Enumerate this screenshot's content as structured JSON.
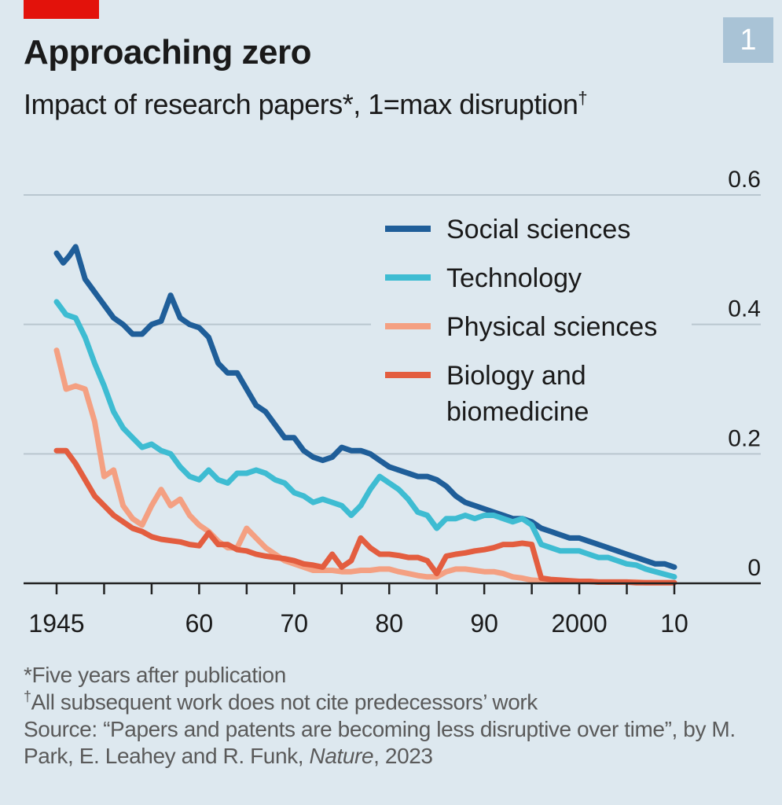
{
  "header": {
    "chart_number": "1",
    "title": "Approaching zero",
    "subtitle": "Impact of research papers*, 1=max disruption",
    "subtitle_mark": "†",
    "accent_color": "#e3120b"
  },
  "footnotes": {
    "note1": "*Five years after publication",
    "note2_mark": "†",
    "note2": "All subsequent work does not cite predecessors’ work",
    "source_prefix": "Source: “Papers and patents are becoming less disruptive over time”, by M. Park, E. Leahey and R. Funk, ",
    "source_journal": "Nature",
    "source_suffix": ", 2023"
  },
  "chart_data": {
    "type": "line",
    "title": "Approaching zero",
    "subtitle": "Impact of research papers*, 1=max disruption†",
    "xlim": [
      1945,
      2010
    ],
    "ylim": [
      0,
      0.6
    ],
    "x_ticks": [
      1945,
      1950,
      1955,
      1960,
      1965,
      1970,
      1975,
      1980,
      1985,
      1990,
      1995,
      2000,
      2005,
      2010
    ],
    "x_tick_labels": [
      {
        "x": 1945,
        "label": "1945"
      },
      {
        "x": 1960,
        "label": "60"
      },
      {
        "x": 1970,
        "label": "70"
      },
      {
        "x": 1980,
        "label": "80"
      },
      {
        "x": 1990,
        "label": "90"
      },
      {
        "x": 2000,
        "label": "2000"
      },
      {
        "x": 2010,
        "label": "10"
      }
    ],
    "y_ticks": [
      {
        "y": 0,
        "label": "0"
      },
      {
        "y": 0.2,
        "label": "0.2"
      },
      {
        "y": 0.4,
        "label": "0.4"
      },
      {
        "y": 0.6,
        "label": "0.6"
      }
    ],
    "grid": true,
    "legend_position": "top-right",
    "series": [
      {
        "name": "Social sciences",
        "color": "#1f5e99",
        "points": [
          [
            1945,
            0.51
          ],
          [
            1945.7,
            0.495
          ],
          [
            1946.3,
            0.505
          ],
          [
            1947,
            0.52
          ],
          [
            1948,
            0.47
          ],
          [
            1949,
            0.45
          ],
          [
            1950,
            0.43
          ],
          [
            1951,
            0.41
          ],
          [
            1952,
            0.4
          ],
          [
            1953,
            0.385
          ],
          [
            1954,
            0.385
          ],
          [
            1955,
            0.4
          ],
          [
            1956,
            0.405
          ],
          [
            1957,
            0.445
          ],
          [
            1958,
            0.41
          ],
          [
            1959,
            0.4
          ],
          [
            1960,
            0.395
          ],
          [
            1961,
            0.38
          ],
          [
            1962,
            0.34
          ],
          [
            1963,
            0.325
          ],
          [
            1964,
            0.325
          ],
          [
            1965,
            0.3
          ],
          [
            1966,
            0.275
          ],
          [
            1967,
            0.265
          ],
          [
            1968,
            0.245
          ],
          [
            1969,
            0.225
          ],
          [
            1970,
            0.225
          ],
          [
            1971,
            0.205
          ],
          [
            1972,
            0.195
          ],
          [
            1973,
            0.19
          ],
          [
            1974,
            0.195
          ],
          [
            1975,
            0.21
          ],
          [
            1976,
            0.205
          ],
          [
            1977,
            0.205
          ],
          [
            1978,
            0.2
          ],
          [
            1979,
            0.19
          ],
          [
            1980,
            0.18
          ],
          [
            1981,
            0.175
          ],
          [
            1982,
            0.17
          ],
          [
            1983,
            0.165
          ],
          [
            1984,
            0.165
          ],
          [
            1985,
            0.16
          ],
          [
            1986,
            0.15
          ],
          [
            1987,
            0.135
          ],
          [
            1988,
            0.125
          ],
          [
            1989,
            0.12
          ],
          [
            1990,
            0.115
          ],
          [
            1991,
            0.11
          ],
          [
            1992,
            0.105
          ],
          [
            1993,
            0.1
          ],
          [
            1994,
            0.1
          ],
          [
            1995,
            0.095
          ],
          [
            1996,
            0.085
          ],
          [
            1997,
            0.08
          ],
          [
            1998,
            0.075
          ],
          [
            1999,
            0.07
          ],
          [
            2000,
            0.07
          ],
          [
            2001,
            0.065
          ],
          [
            2002,
            0.06
          ],
          [
            2003,
            0.055
          ],
          [
            2004,
            0.05
          ],
          [
            2005,
            0.045
          ],
          [
            2006,
            0.04
          ],
          [
            2007,
            0.035
          ],
          [
            2008,
            0.03
          ],
          [
            2009,
            0.03
          ],
          [
            2010,
            0.025
          ]
        ]
      },
      {
        "name": "Technology",
        "color": "#3ebcd2",
        "points": [
          [
            1945,
            0.435
          ],
          [
            1946,
            0.415
          ],
          [
            1947,
            0.41
          ],
          [
            1948,
            0.38
          ],
          [
            1949,
            0.34
          ],
          [
            1950,
            0.305
          ],
          [
            1951,
            0.265
          ],
          [
            1952,
            0.24
          ],
          [
            1953,
            0.225
          ],
          [
            1954,
            0.21
          ],
          [
            1955,
            0.215
          ],
          [
            1956,
            0.205
          ],
          [
            1957,
            0.2
          ],
          [
            1958,
            0.18
          ],
          [
            1959,
            0.165
          ],
          [
            1960,
            0.16
          ],
          [
            1961,
            0.175
          ],
          [
            1962,
            0.16
          ],
          [
            1963,
            0.155
          ],
          [
            1964,
            0.17
          ],
          [
            1965,
            0.17
          ],
          [
            1966,
            0.175
          ],
          [
            1967,
            0.17
          ],
          [
            1968,
            0.16
          ],
          [
            1969,
            0.155
          ],
          [
            1970,
            0.14
          ],
          [
            1971,
            0.135
          ],
          [
            1972,
            0.125
          ],
          [
            1973,
            0.13
          ],
          [
            1974,
            0.125
          ],
          [
            1975,
            0.12
          ],
          [
            1976,
            0.105
          ],
          [
            1977,
            0.12
          ],
          [
            1978,
            0.145
          ],
          [
            1979,
            0.165
          ],
          [
            1980,
            0.155
          ],
          [
            1981,
            0.145
          ],
          [
            1982,
            0.13
          ],
          [
            1983,
            0.11
          ],
          [
            1984,
            0.105
          ],
          [
            1985,
            0.085
          ],
          [
            1986,
            0.1
          ],
          [
            1987,
            0.1
          ],
          [
            1988,
            0.105
          ],
          [
            1989,
            0.1
          ],
          [
            1990,
            0.105
          ],
          [
            1991,
            0.105
          ],
          [
            1992,
            0.1
          ],
          [
            1993,
            0.095
          ],
          [
            1994,
            0.1
          ],
          [
            1995,
            0.09
          ],
          [
            1996,
            0.06
          ],
          [
            1997,
            0.055
          ],
          [
            1998,
            0.05
          ],
          [
            1999,
            0.05
          ],
          [
            2000,
            0.05
          ],
          [
            2001,
            0.045
          ],
          [
            2002,
            0.04
          ],
          [
            2003,
            0.04
          ],
          [
            2004,
            0.035
          ],
          [
            2005,
            0.03
          ],
          [
            2006,
            0.028
          ],
          [
            2007,
            0.022
          ],
          [
            2008,
            0.018
          ],
          [
            2009,
            0.014
          ],
          [
            2010,
            0.01
          ]
        ]
      },
      {
        "name": "Physical sciences",
        "color": "#f4a082",
        "points": [
          [
            1945,
            0.36
          ],
          [
            1946,
            0.3
          ],
          [
            1947,
            0.305
          ],
          [
            1948,
            0.3
          ],
          [
            1949,
            0.25
          ],
          [
            1950,
            0.165
          ],
          [
            1951,
            0.175
          ],
          [
            1952,
            0.12
          ],
          [
            1953,
            0.1
          ],
          [
            1954,
            0.09
          ],
          [
            1955,
            0.12
          ],
          [
            1956,
            0.145
          ],
          [
            1957,
            0.12
          ],
          [
            1958,
            0.13
          ],
          [
            1959,
            0.105
          ],
          [
            1960,
            0.09
          ],
          [
            1961,
            0.08
          ],
          [
            1962,
            0.065
          ],
          [
            1963,
            0.055
          ],
          [
            1964,
            0.055
          ],
          [
            1965,
            0.085
          ],
          [
            1966,
            0.07
          ],
          [
            1967,
            0.055
          ],
          [
            1968,
            0.045
          ],
          [
            1969,
            0.035
          ],
          [
            1970,
            0.03
          ],
          [
            1971,
            0.025
          ],
          [
            1972,
            0.02
          ],
          [
            1973,
            0.02
          ],
          [
            1974,
            0.02
          ],
          [
            1975,
            0.018
          ],
          [
            1976,
            0.018
          ],
          [
            1977,
            0.02
          ],
          [
            1978,
            0.02
          ],
          [
            1979,
            0.022
          ],
          [
            1980,
            0.022
          ],
          [
            1981,
            0.018
          ],
          [
            1982,
            0.015
          ],
          [
            1983,
            0.012
          ],
          [
            1984,
            0.01
          ],
          [
            1985,
            0.01
          ],
          [
            1986,
            0.018
          ],
          [
            1987,
            0.022
          ],
          [
            1988,
            0.022
          ],
          [
            1989,
            0.02
          ],
          [
            1990,
            0.018
          ],
          [
            1991,
            0.018
          ],
          [
            1992,
            0.015
          ],
          [
            1993,
            0.01
          ],
          [
            1994,
            0.008
          ],
          [
            1995,
            0.005
          ],
          [
            1996,
            0.004
          ],
          [
            1997,
            0.004
          ],
          [
            1998,
            0.004
          ],
          [
            1999,
            0.003
          ],
          [
            2000,
            0.003
          ],
          [
            2001,
            0.003
          ],
          [
            2002,
            0.002
          ],
          [
            2003,
            0.002
          ],
          [
            2004,
            0.002
          ],
          [
            2005,
            0.002
          ],
          [
            2006,
            0.002
          ],
          [
            2007,
            0.001
          ],
          [
            2008,
            0.001
          ],
          [
            2009,
            0.001
          ],
          [
            2010,
            0.001
          ]
        ]
      },
      {
        "name": "Biology and biomedicine",
        "color": "#e35d3f",
        "points": [
          [
            1945,
            0.205
          ],
          [
            1946,
            0.205
          ],
          [
            1947,
            0.185
          ],
          [
            1948,
            0.16
          ],
          [
            1949,
            0.135
          ],
          [
            1950,
            0.12
          ],
          [
            1951,
            0.105
          ],
          [
            1952,
            0.095
          ],
          [
            1953,
            0.085
          ],
          [
            1954,
            0.08
          ],
          [
            1955,
            0.072
          ],
          [
            1956,
            0.068
          ],
          [
            1957,
            0.066
          ],
          [
            1958,
            0.064
          ],
          [
            1959,
            0.06
          ],
          [
            1960,
            0.058
          ],
          [
            1961,
            0.078
          ],
          [
            1962,
            0.06
          ],
          [
            1963,
            0.06
          ],
          [
            1964,
            0.052
          ],
          [
            1965,
            0.05
          ],
          [
            1966,
            0.045
          ],
          [
            1967,
            0.042
          ],
          [
            1968,
            0.04
          ],
          [
            1969,
            0.038
          ],
          [
            1970,
            0.035
          ],
          [
            1971,
            0.03
          ],
          [
            1972,
            0.028
          ],
          [
            1973,
            0.025
          ],
          [
            1974,
            0.045
          ],
          [
            1975,
            0.025
          ],
          [
            1976,
            0.035
          ],
          [
            1977,
            0.07
          ],
          [
            1978,
            0.055
          ],
          [
            1979,
            0.045
          ],
          [
            1980,
            0.045
          ],
          [
            1981,
            0.043
          ],
          [
            1982,
            0.04
          ],
          [
            1983,
            0.04
          ],
          [
            1984,
            0.035
          ],
          [
            1985,
            0.015
          ],
          [
            1986,
            0.042
          ],
          [
            1987,
            0.045
          ],
          [
            1988,
            0.047
          ],
          [
            1989,
            0.05
          ],
          [
            1990,
            0.052
          ],
          [
            1991,
            0.055
          ],
          [
            1992,
            0.06
          ],
          [
            1993,
            0.06
          ],
          [
            1994,
            0.062
          ],
          [
            1995,
            0.06
          ],
          [
            1996,
            0.008
          ],
          [
            1997,
            0.006
          ],
          [
            1998,
            0.005
          ],
          [
            1999,
            0.004
          ],
          [
            2000,
            0.003
          ],
          [
            2001,
            0.003
          ],
          [
            2002,
            0.002
          ],
          [
            2003,
            0.002
          ],
          [
            2004,
            0.002
          ],
          [
            2005,
            0.002
          ],
          [
            2006,
            0.001
          ],
          [
            2007,
            0.001
          ],
          [
            2008,
            0.001
          ],
          [
            2009,
            0.001
          ],
          [
            2010,
            0.001
          ]
        ]
      }
    ],
    "legend": [
      {
        "label": "Social sciences",
        "color": "#1f5e99"
      },
      {
        "label": "Technology",
        "color": "#3ebcd2"
      },
      {
        "label": "Physical sciences",
        "color": "#f4a082"
      },
      {
        "label": "Biology and biomedicine",
        "color": "#e35d3f",
        "lines": [
          "Biology and",
          "biomedicine"
        ]
      }
    ],
    "colors": {
      "background": "#dde8ef",
      "grid": "#b9c6cf",
      "axis": "#222222"
    }
  }
}
